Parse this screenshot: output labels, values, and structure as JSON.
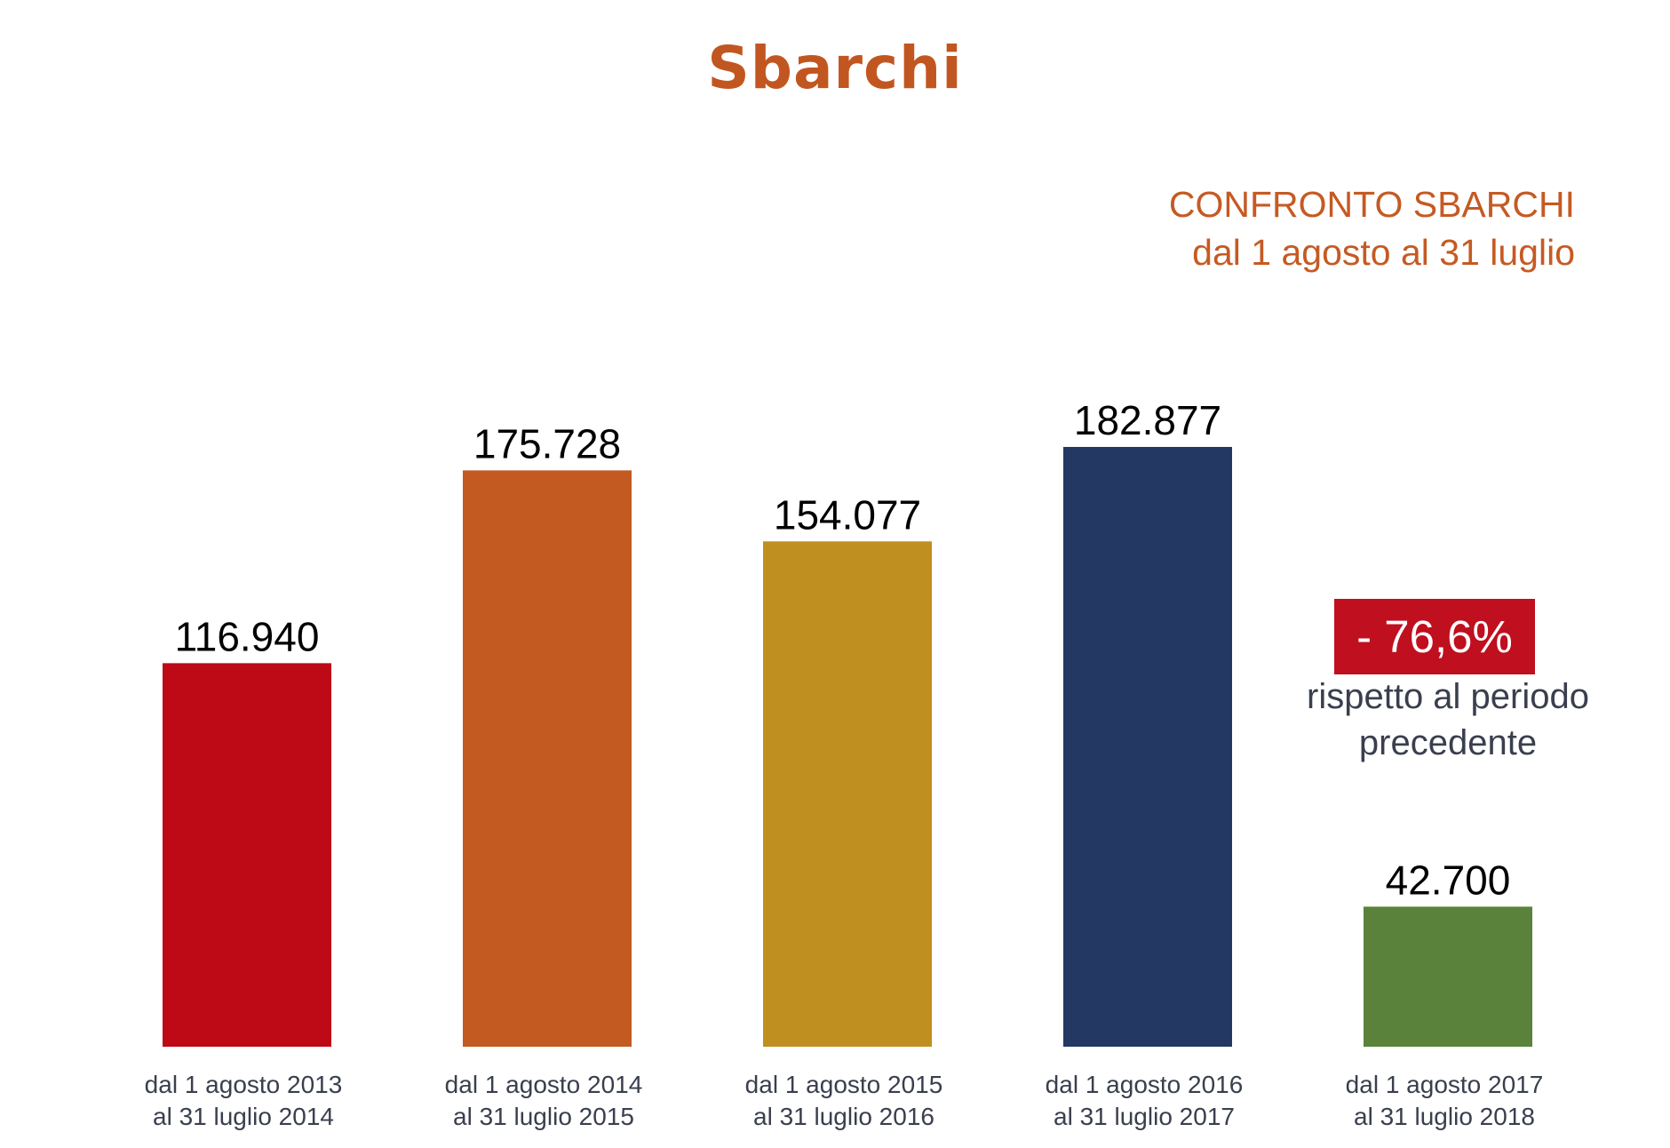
{
  "title": "Sbarchi",
  "subtitle": {
    "line1": "CONFRONTO SBARCHI",
    "line2": "dal 1 agosto al 31 luglio"
  },
  "callout": {
    "badge": "- 76,6%",
    "line1": "rispetto al periodo",
    "line2": "precedente",
    "badge_color": "#C00F1E"
  },
  "chart_data": {
    "type": "bar",
    "title": "Sbarchi",
    "categories": [
      [
        "dal 1 agosto 2013",
        "al 31 luglio 2014"
      ],
      [
        "dal 1 agosto 2014",
        "al 31 luglio 2015"
      ],
      [
        "dal 1 agosto 2015",
        "al 31 luglio 2016"
      ],
      [
        "dal 1 agosto 2016",
        "al 31 luglio 2017"
      ],
      [
        "dal 1 agosto 2017",
        "al 31 luglio 2018"
      ]
    ],
    "values": [
      116940,
      175728,
      154077,
      182877,
      42700
    ],
    "value_labels": [
      "116.940",
      "175.728",
      "154.077",
      "182.877",
      "42.700"
    ],
    "colors": [
      "#BE0A16",
      "#C25A21",
      "#BF8F20",
      "#233862",
      "#5A823A"
    ],
    "xlabel": "",
    "ylabel": "",
    "ylim": [
      0,
      182877
    ],
    "grid": false,
    "legend": "none"
  }
}
